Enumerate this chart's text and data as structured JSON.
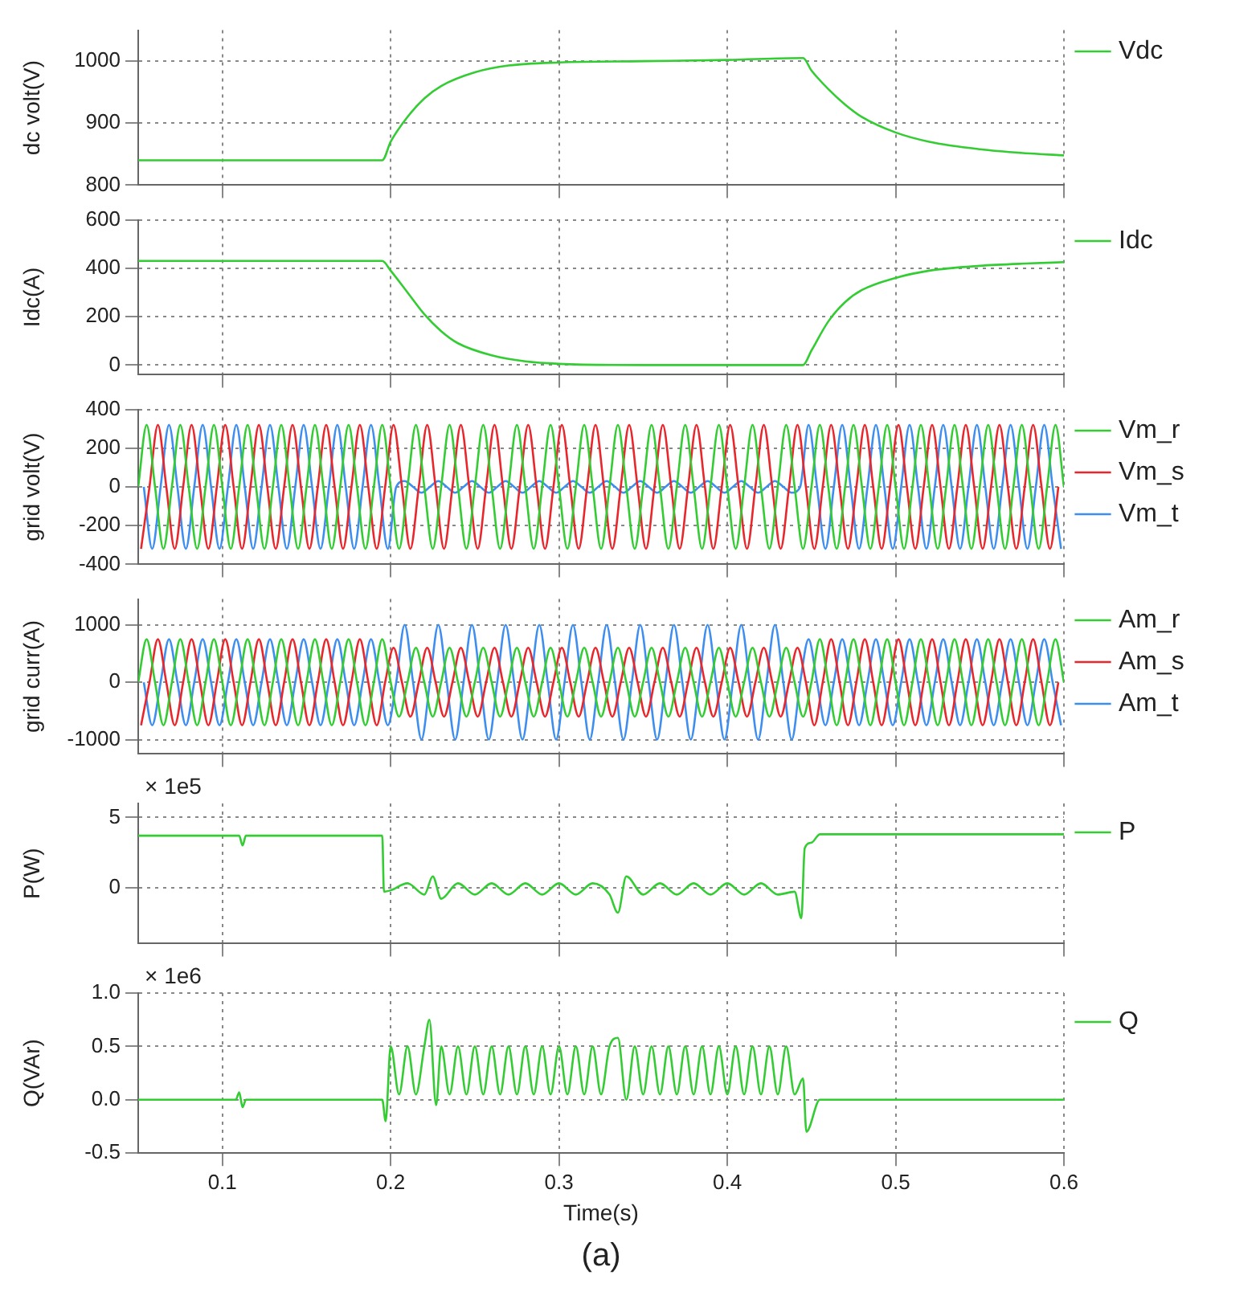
{
  "chart_data": [
    {
      "type": "line",
      "ylabel": "dc volt(V)",
      "xlim": [
        0.05,
        0.6
      ],
      "xticks": [
        0.1,
        0.2,
        0.3,
        0.4,
        0.5,
        0.6
      ],
      "ylim": [
        800,
        1050
      ],
      "yticks": [
        800,
        900,
        1000
      ],
      "grid": true,
      "legend": "right",
      "tick_labels": "y",
      "marker": "none",
      "line_style": "solid",
      "series": [
        {
          "name": "Vdc",
          "color": "#33cc33",
          "x": [
            0.05,
            0.195,
            0.2,
            0.21,
            0.22,
            0.23,
            0.25,
            0.27,
            0.3,
            0.35,
            0.4,
            0.445,
            0.45,
            0.46,
            0.47,
            0.48,
            0.5,
            0.52,
            0.55,
            0.58,
            0.6
          ],
          "values": [
            840,
            840,
            870,
            910,
            940,
            960,
            982,
            993,
            998,
            1000,
            1002,
            1005,
            985,
            955,
            930,
            910,
            885,
            870,
            858,
            851,
            848
          ]
        }
      ]
    },
    {
      "type": "line",
      "ylabel": "Idc(A)",
      "xlim": [
        0.05,
        0.6
      ],
      "xticks": [
        0.1,
        0.2,
        0.3,
        0.4,
        0.5,
        0.6
      ],
      "ylim": [
        -40,
        600
      ],
      "yticks": [
        0,
        200,
        400,
        600
      ],
      "grid": true,
      "legend": "right",
      "tick_labels": "y",
      "marker": "none",
      "line_style": "solid",
      "series": [
        {
          "name": "Idc",
          "color": "#33cc33",
          "x": [
            0.05,
            0.195,
            0.2,
            0.21,
            0.22,
            0.23,
            0.24,
            0.26,
            0.28,
            0.3,
            0.35,
            0.445,
            0.45,
            0.46,
            0.47,
            0.48,
            0.5,
            0.52,
            0.55,
            0.58,
            0.6
          ],
          "values": [
            430,
            430,
            390,
            300,
            210,
            140,
            90,
            40,
            15,
            5,
            0,
            0,
            60,
            180,
            260,
            310,
            360,
            390,
            410,
            420,
            425
          ]
        }
      ]
    },
    {
      "type": "line",
      "ylabel": "grid volt(V)",
      "xlim": [
        0.05,
        0.6
      ],
      "xticks": [
        0.1,
        0.2,
        0.3,
        0.4,
        0.5,
        0.6
      ],
      "ylim": [
        -400,
        400
      ],
      "yticks": [
        -400,
        -200,
        0,
        200,
        400
      ],
      "grid": true,
      "legend": "right",
      "tick_labels": "y",
      "marker": "none",
      "line_style": "solid",
      "series": [
        {
          "name": "Vm_r",
          "color": "#33cc33",
          "x": [
            0.05,
            0.055,
            0.06,
            0.065,
            0.07,
            0.075,
            0.08,
            0.085,
            0.09,
            0.095,
            0.1,
            0.105,
            0.11,
            0.115,
            0.12,
            0.125,
            0.13,
            0.135,
            0.14,
            0.145,
            0.15,
            0.155,
            0.16,
            0.165,
            0.17,
            0.175,
            0.18,
            0.185,
            0.19,
            0.195,
            0.2,
            0.205,
            0.21,
            0.215,
            0.22,
            0.225,
            0.23,
            0.235,
            0.24,
            0.245,
            0.25,
            0.255,
            0.26,
            0.265,
            0.27,
            0.275,
            0.28,
            0.285,
            0.29,
            0.295,
            0.3,
            0.305,
            0.31,
            0.315,
            0.32,
            0.325,
            0.33,
            0.335,
            0.34,
            0.345,
            0.35,
            0.355,
            0.36,
            0.365,
            0.37,
            0.375,
            0.38,
            0.385,
            0.39,
            0.395,
            0.4,
            0.405,
            0.41,
            0.415,
            0.42,
            0.425,
            0.43,
            0.435,
            0.44,
            0.445,
            0.45,
            0.455,
            0.46,
            0.465,
            0.47,
            0.475,
            0.48,
            0.485,
            0.49,
            0.495,
            0.5,
            0.505,
            0.51,
            0.515,
            0.52,
            0.525,
            0.53,
            0.535,
            0.54,
            0.545,
            0.55,
            0.555,
            0.56,
            0.565,
            0.57,
            0.575,
            0.58,
            0.585,
            0.59,
            0.595,
            0.6
          ],
          "values": [
            0,
            320,
            0,
            -320,
            0,
            320,
            0,
            -320,
            0,
            320,
            0,
            -320,
            0,
            320,
            0,
            -320,
            0,
            320,
            0,
            -320,
            0,
            320,
            0,
            -320,
            0,
            320,
            0,
            -320,
            0,
            320,
            0,
            -320,
            0,
            320,
            0,
            -320,
            0,
            320,
            0,
            -320,
            0,
            320,
            0,
            -320,
            0,
            320,
            0,
            -320,
            0,
            320,
            0,
            -320,
            0,
            320,
            0,
            -320,
            0,
            320,
            0,
            -320,
            0,
            320,
            0,
            -320,
            0,
            320,
            0,
            -320,
            0,
            320,
            0,
            -320,
            0,
            320,
            0,
            -320,
            0,
            320,
            0,
            -320,
            0,
            320,
            0,
            -320,
            0,
            320,
            0,
            -320,
            0,
            320,
            0,
            -320,
            0,
            320,
            0,
            -320,
            0,
            320,
            0,
            -320,
            0,
            320,
            0,
            -320,
            0,
            320,
            0,
            -320,
            0,
            320,
            0
          ]
        },
        {
          "name": "Vm_s",
          "color": "#e8262b",
          "x": [
            0.0517,
            0.0567,
            0.0617,
            0.0667,
            0.0717,
            0.0767,
            0.0817,
            0.0867,
            0.0917,
            0.0967,
            0.1017,
            0.1067,
            0.1117,
            0.1167,
            0.1217,
            0.1267,
            0.1317,
            0.1367,
            0.1417,
            0.1467,
            0.1517,
            0.1567,
            0.1617,
            0.1667,
            0.1717,
            0.1767,
            0.1817,
            0.1867,
            0.1917,
            0.1967,
            0.2017,
            0.2067,
            0.2117,
            0.2167,
            0.2217,
            0.2267,
            0.2317,
            0.2367,
            0.2417,
            0.2467,
            0.2517,
            0.2567,
            0.2617,
            0.2667,
            0.2717,
            0.2767,
            0.2817,
            0.2867,
            0.2917,
            0.2967,
            0.3017,
            0.3067,
            0.3117,
            0.3167,
            0.3217,
            0.3267,
            0.3317,
            0.3367,
            0.3417,
            0.3467,
            0.3517,
            0.3567,
            0.3617,
            0.3667,
            0.3717,
            0.3767,
            0.3817,
            0.3867,
            0.3917,
            0.3967,
            0.4017,
            0.4067,
            0.4117,
            0.4167,
            0.4217,
            0.4267,
            0.4317,
            0.4367,
            0.4417,
            0.4467,
            0.4517,
            0.4567,
            0.4617,
            0.4667,
            0.4717,
            0.4767,
            0.4817,
            0.4867,
            0.4917,
            0.4967,
            0.5017,
            0.5067,
            0.5117,
            0.5167,
            0.5217,
            0.5267,
            0.5317,
            0.5367,
            0.5417,
            0.5467,
            0.5517,
            0.5567,
            0.5617,
            0.5667,
            0.5717,
            0.5767,
            0.5817,
            0.5867,
            0.5917,
            0.5967
          ],
          "values": [
            -320,
            0,
            320,
            0,
            -320,
            0,
            320,
            0,
            -320,
            0,
            320,
            0,
            -320,
            0,
            320,
            0,
            -320,
            0,
            320,
            0,
            -320,
            0,
            320,
            0,
            -320,
            0,
            320,
            0,
            -320,
            0,
            320,
            0,
            -320,
            0,
            320,
            0,
            -320,
            0,
            320,
            0,
            -320,
            0,
            320,
            0,
            -320,
            0,
            320,
            0,
            -320,
            0,
            320,
            0,
            -320,
            0,
            320,
            0,
            -320,
            0,
            320,
            0,
            -320,
            0,
            320,
            0,
            -320,
            0,
            320,
            0,
            -320,
            0,
            320,
            0,
            -320,
            0,
            320,
            0,
            -320,
            0,
            320,
            0,
            -320,
            0,
            320,
            0,
            -320,
            0,
            320,
            0,
            -320,
            0,
            320,
            0,
            -320,
            0,
            320,
            0,
            -320,
            0,
            320,
            0,
            -320,
            0,
            320,
            0,
            -320,
            0,
            320,
            0,
            -320,
            0
          ]
        },
        {
          "name": "Vm_t",
          "color": "#3d8ef0",
          "x": [
            0.0533,
            0.0583,
            0.0633,
            0.0683,
            0.0733,
            0.0783,
            0.0833,
            0.0883,
            0.0933,
            0.0983,
            0.1033,
            0.1083,
            0.1133,
            0.1183,
            0.1233,
            0.1283,
            0.1333,
            0.1383,
            0.1433,
            0.1483,
            0.1533,
            0.1583,
            0.1633,
            0.1683,
            0.1733,
            0.1783,
            0.1833,
            0.1883,
            0.1933,
            0.1983,
            0.2033,
            0.2083,
            0.2133,
            0.2183,
            0.2233,
            0.2283,
            0.2333,
            0.2383,
            0.2433,
            0.2483,
            0.2533,
            0.2583,
            0.2633,
            0.2683,
            0.2733,
            0.2783,
            0.2833,
            0.2883,
            0.2933,
            0.2983,
            0.3033,
            0.3083,
            0.3133,
            0.3183,
            0.3233,
            0.3283,
            0.3333,
            0.3383,
            0.3433,
            0.3483,
            0.3533,
            0.3583,
            0.3633,
            0.3683,
            0.3733,
            0.3783,
            0.3833,
            0.3883,
            0.3933,
            0.3983,
            0.4033,
            0.4083,
            0.4133,
            0.4183,
            0.4233,
            0.4283,
            0.4333,
            0.4383,
            0.4433,
            0.4483,
            0.4533,
            0.4583,
            0.4633,
            0.4683,
            0.4733,
            0.4783,
            0.4833,
            0.4883,
            0.4933,
            0.4983,
            0.5033,
            0.5083,
            0.5133,
            0.5183,
            0.5233,
            0.5283,
            0.5333,
            0.5383,
            0.5433,
            0.5483,
            0.5533,
            0.5583,
            0.5633,
            0.5683,
            0.5733,
            0.5783,
            0.5833,
            0.5883,
            0.5933,
            0.5983
          ],
          "values": [
            0,
            -320,
            0,
            320,
            0,
            -320,
            0,
            320,
            0,
            -320,
            0,
            320,
            0,
            -320,
            0,
            320,
            0,
            -320,
            0,
            320,
            0,
            -320,
            0,
            320,
            0,
            -320,
            0,
            320,
            0,
            -320,
            0,
            30,
            0,
            -30,
            0,
            30,
            0,
            -30,
            0,
            30,
            0,
            -30,
            0,
            30,
            0,
            -30,
            0,
            30,
            0,
            -30,
            0,
            30,
            0,
            -30,
            0,
            30,
            0,
            -30,
            0,
            30,
            0,
            -30,
            0,
            30,
            0,
            -30,
            0,
            30,
            0,
            -30,
            0,
            30,
            0,
            -30,
            0,
            30,
            0,
            -30,
            0,
            320,
            0,
            -320,
            0,
            320,
            0,
            -320,
            0,
            320,
            0,
            -320,
            0,
            320,
            0,
            -320,
            0,
            320,
            0,
            -320,
            0,
            320,
            0,
            -320,
            0,
            320,
            0,
            -320,
            0,
            320,
            0,
            -320
          ]
        }
      ]
    },
    {
      "type": "line",
      "ylabel": "grid curr(A)",
      "xlim": [
        0.05,
        0.6
      ],
      "xticks": [
        0.1,
        0.2,
        0.3,
        0.4,
        0.5,
        0.6
      ],
      "ylim": [
        -1250,
        1450
      ],
      "yticks": [
        -1000,
        0,
        1000
      ],
      "grid": true,
      "legend": "right",
      "tick_labels": "y",
      "marker": "none",
      "line_style": "solid",
      "series": [
        {
          "name": "Am_r",
          "color": "#33cc33",
          "x": [
            0.05,
            0.055,
            0.06,
            0.065,
            0.07,
            0.075,
            0.08,
            0.085,
            0.09,
            0.095,
            0.1,
            0.105,
            0.11,
            0.115,
            0.12,
            0.125,
            0.13,
            0.135,
            0.14,
            0.145,
            0.15,
            0.155,
            0.16,
            0.165,
            0.17,
            0.175,
            0.18,
            0.185,
            0.19,
            0.195,
            0.2,
            0.205,
            0.21,
            0.215,
            0.22,
            0.225,
            0.23,
            0.235,
            0.24,
            0.245,
            0.25,
            0.255,
            0.26,
            0.265,
            0.27,
            0.275,
            0.28,
            0.285,
            0.29,
            0.295,
            0.3,
            0.305,
            0.31,
            0.315,
            0.32,
            0.325,
            0.33,
            0.335,
            0.34,
            0.345,
            0.35,
            0.355,
            0.36,
            0.365,
            0.37,
            0.375,
            0.38,
            0.385,
            0.39,
            0.395,
            0.4,
            0.405,
            0.41,
            0.415,
            0.42,
            0.425,
            0.43,
            0.435,
            0.44,
            0.445,
            0.45,
            0.455,
            0.46,
            0.465,
            0.47,
            0.475,
            0.48,
            0.485,
            0.49,
            0.495,
            0.5,
            0.505,
            0.51,
            0.515,
            0.52,
            0.525,
            0.53,
            0.535,
            0.54,
            0.545,
            0.55,
            0.555,
            0.56,
            0.565,
            0.57,
            0.575,
            0.58,
            0.585,
            0.59,
            0.595,
            0.6
          ],
          "values": [
            0,
            750,
            0,
            -750,
            0,
            750,
            0,
            -750,
            0,
            750,
            0,
            -750,
            0,
            750,
            0,
            -750,
            0,
            750,
            0,
            -750,
            0,
            750,
            0,
            -750,
            0,
            750,
            0,
            -750,
            0,
            750,
            0,
            -600,
            0,
            600,
            0,
            -600,
            0,
            600,
            0,
            -600,
            0,
            600,
            0,
            -600,
            0,
            600,
            0,
            -600,
            0,
            600,
            0,
            -600,
            0,
            600,
            0,
            -600,
            0,
            600,
            0,
            -600,
            0,
            600,
            0,
            -600,
            0,
            600,
            0,
            -600,
            0,
            600,
            0,
            -600,
            0,
            600,
            0,
            -600,
            0,
            600,
            0,
            -600,
            0,
            750,
            0,
            -750,
            0,
            750,
            0,
            -750,
            0,
            750,
            0,
            -750,
            0,
            750,
            0,
            -750,
            0,
            750,
            0,
            -750,
            0,
            750,
            0,
            -750,
            0,
            750,
            0,
            -750,
            0,
            750,
            0
          ]
        },
        {
          "name": "Am_s",
          "color": "#e8262b",
          "x": [
            0.0517,
            0.0567,
            0.0617,
            0.0667,
            0.0717,
            0.0767,
            0.0817,
            0.0867,
            0.0917,
            0.0967,
            0.1017,
            0.1067,
            0.1117,
            0.1167,
            0.1217,
            0.1267,
            0.1317,
            0.1367,
            0.1417,
            0.1467,
            0.1517,
            0.1567,
            0.1617,
            0.1667,
            0.1717,
            0.1767,
            0.1817,
            0.1867,
            0.1917,
            0.1967,
            0.2017,
            0.2067,
            0.2117,
            0.2167,
            0.2217,
            0.2267,
            0.2317,
            0.2367,
            0.2417,
            0.2467,
            0.2517,
            0.2567,
            0.2617,
            0.2667,
            0.2717,
            0.2767,
            0.2817,
            0.2867,
            0.2917,
            0.2967,
            0.3017,
            0.3067,
            0.3117,
            0.3167,
            0.3217,
            0.3267,
            0.3317,
            0.3367,
            0.3417,
            0.3467,
            0.3517,
            0.3567,
            0.3617,
            0.3667,
            0.3717,
            0.3767,
            0.3817,
            0.3867,
            0.3917,
            0.3967,
            0.4017,
            0.4067,
            0.4117,
            0.4167,
            0.4217,
            0.4267,
            0.4317,
            0.4367,
            0.4417,
            0.4467,
            0.4517,
            0.4567,
            0.4617,
            0.4667,
            0.4717,
            0.4767,
            0.4817,
            0.4867,
            0.4917,
            0.4967,
            0.5017,
            0.5067,
            0.5117,
            0.5167,
            0.5217,
            0.5267,
            0.5317,
            0.5367,
            0.5417,
            0.5467,
            0.5517,
            0.5567,
            0.5617,
            0.5667,
            0.5717,
            0.5767,
            0.5817,
            0.5867,
            0.5917,
            0.5967
          ],
          "values": [
            -750,
            0,
            750,
            0,
            -750,
            0,
            750,
            0,
            -750,
            0,
            750,
            0,
            -750,
            0,
            750,
            0,
            -750,
            0,
            750,
            0,
            -750,
            0,
            750,
            0,
            -750,
            0,
            750,
            0,
            -750,
            0,
            600,
            0,
            -600,
            0,
            600,
            0,
            -600,
            0,
            600,
            0,
            -600,
            0,
            600,
            0,
            -600,
            0,
            600,
            0,
            -600,
            0,
            600,
            0,
            -600,
            0,
            600,
            0,
            -600,
            0,
            600,
            0,
            -600,
            0,
            600,
            0,
            -600,
            0,
            600,
            0,
            -600,
            0,
            600,
            0,
            -600,
            0,
            600,
            0,
            -600,
            0,
            600,
            0,
            -750,
            0,
            750,
            0,
            -750,
            0,
            750,
            0,
            -750,
            0,
            750,
            0,
            -750,
            0,
            750,
            0,
            -750,
            0,
            750,
            0,
            -750,
            0,
            750,
            0,
            -750,
            0,
            750,
            0,
            -750,
            0
          ]
        },
        {
          "name": "Am_t",
          "color": "#3d8ef0",
          "x": [
            0.0533,
            0.0583,
            0.0633,
            0.0683,
            0.0733,
            0.0783,
            0.0833,
            0.0883,
            0.0933,
            0.0983,
            0.1033,
            0.1083,
            0.1133,
            0.1183,
            0.1233,
            0.1283,
            0.1333,
            0.1383,
            0.1433,
            0.1483,
            0.1533,
            0.1583,
            0.1633,
            0.1683,
            0.1733,
            0.1783,
            0.1833,
            0.1883,
            0.1933,
            0.1983,
            0.2033,
            0.2083,
            0.2133,
            0.2183,
            0.2233,
            0.2283,
            0.2333,
            0.2383,
            0.2433,
            0.2483,
            0.2533,
            0.2583,
            0.2633,
            0.2683,
            0.2733,
            0.2783,
            0.2833,
            0.2883,
            0.2933,
            0.2983,
            0.3033,
            0.3083,
            0.3133,
            0.3183,
            0.3233,
            0.3283,
            0.3333,
            0.3383,
            0.3433,
            0.3483,
            0.3533,
            0.3583,
            0.3633,
            0.3683,
            0.3733,
            0.3783,
            0.3833,
            0.3883,
            0.3933,
            0.3983,
            0.4033,
            0.4083,
            0.4133,
            0.4183,
            0.4233,
            0.4283,
            0.4333,
            0.4383,
            0.4433,
            0.4483,
            0.4533,
            0.4583,
            0.4633,
            0.4683,
            0.4733,
            0.4783,
            0.4833,
            0.4883,
            0.4933,
            0.4983,
            0.5033,
            0.5083,
            0.5133,
            0.5183,
            0.5233,
            0.5283,
            0.5333,
            0.5383,
            0.5433,
            0.5483,
            0.5533,
            0.5583,
            0.5633,
            0.5683,
            0.5733,
            0.5783,
            0.5833,
            0.5883,
            0.5933,
            0.5983
          ],
          "values": [
            0,
            -750,
            0,
            750,
            0,
            -750,
            0,
            750,
            0,
            -750,
            0,
            750,
            0,
            -750,
            0,
            750,
            0,
            -750,
            0,
            750,
            0,
            -750,
            0,
            750,
            0,
            -750,
            0,
            750,
            0,
            -750,
            0,
            1000,
            0,
            -1000,
            0,
            1000,
            0,
            -1000,
            0,
            1000,
            0,
            -1000,
            0,
            1000,
            0,
            -1000,
            0,
            1000,
            0,
            -1000,
            0,
            1000,
            0,
            -1000,
            0,
            1000,
            0,
            -1000,
            0,
            1000,
            0,
            -1000,
            0,
            1000,
            0,
            -1000,
            0,
            1000,
            0,
            -1000,
            0,
            1000,
            0,
            -1000,
            0,
            1000,
            0,
            -1000,
            0,
            750,
            0,
            -750,
            0,
            750,
            0,
            -750,
            0,
            750,
            0,
            -750,
            0,
            750,
            0,
            -750,
            0,
            750,
            0,
            -750,
            0,
            750,
            0,
            -750,
            0,
            750,
            0,
            -750,
            0,
            750,
            0,
            -750
          ]
        }
      ]
    },
    {
      "type": "line",
      "ylabel": "P(W)",
      "annotations": [
        "× 1e5"
      ],
      "xlim": [
        0.05,
        0.6
      ],
      "xticks": [
        0.1,
        0.2,
        0.3,
        0.4,
        0.5,
        0.6
      ],
      "ylim": [
        -4,
        6
      ],
      "yticks": [
        0,
        5
      ],
      "grid": true,
      "legend": "right",
      "tick_labels": "y",
      "marker": "none",
      "line_style": "solid",
      "series": [
        {
          "name": "P",
          "color": "#33cc33",
          "x": [
            0.05,
            0.11,
            0.112,
            0.114,
            0.195,
            0.196,
            0.2,
            0.21,
            0.22,
            0.225,
            0.23,
            0.24,
            0.25,
            0.26,
            0.27,
            0.28,
            0.29,
            0.3,
            0.31,
            0.32,
            0.33,
            0.335,
            0.34,
            0.35,
            0.36,
            0.37,
            0.38,
            0.39,
            0.4,
            0.41,
            0.42,
            0.43,
            0.44,
            0.444,
            0.446,
            0.45,
            0.455,
            0.5,
            0.6
          ],
          "values": [
            3.7,
            3.7,
            3.0,
            3.7,
            3.7,
            -0.3,
            -0.2,
            0.3,
            -0.5,
            0.8,
            -0.8,
            0.3,
            -0.5,
            0.3,
            -0.5,
            0.3,
            -0.5,
            0.3,
            -0.5,
            0.3,
            -0.5,
            -1.8,
            0.8,
            -0.5,
            0.3,
            -0.5,
            0.3,
            -0.5,
            0.3,
            -0.5,
            0.3,
            -0.5,
            -0.3,
            -2.2,
            2.8,
            3.2,
            3.8,
            3.8,
            3.8
          ]
        }
      ]
    },
    {
      "type": "line",
      "xlabel": "Time(s)",
      "ylabel": "Q(VAr)",
      "annotations": [
        "× 1e6",
        "(a)"
      ],
      "xlim": [
        0.05,
        0.6
      ],
      "xticks": [
        0.1,
        0.2,
        0.3,
        0.4,
        0.5,
        0.6
      ],
      "ylim": [
        -0.5,
        1.0
      ],
      "yticks": [
        {
          "value": -0.5,
          "label": "-0.5"
        },
        {
          "value": 0,
          "label": "0.0"
        },
        {
          "value": 0.5,
          "label": "0.5"
        },
        {
          "value": 1.0,
          "label": "1.0"
        }
      ],
      "grid": true,
      "legend": "right",
      "marker": "none",
      "line_style": "solid",
      "series": [
        {
          "name": "Q",
          "color": "#33cc33",
          "x": [
            0.05,
            0.108,
            0.11,
            0.112,
            0.114,
            0.195,
            0.197,
            0.2,
            0.205,
            0.21,
            0.215,
            0.22,
            0.223,
            0.227,
            0.23,
            0.235,
            0.24,
            0.245,
            0.25,
            0.255,
            0.26,
            0.265,
            0.27,
            0.275,
            0.28,
            0.285,
            0.29,
            0.295,
            0.3,
            0.305,
            0.31,
            0.315,
            0.32,
            0.325,
            0.33,
            0.335,
            0.34,
            0.345,
            0.35,
            0.355,
            0.36,
            0.365,
            0.37,
            0.375,
            0.38,
            0.385,
            0.39,
            0.395,
            0.4,
            0.405,
            0.41,
            0.415,
            0.42,
            0.425,
            0.43,
            0.435,
            0.44,
            0.445,
            0.447,
            0.455,
            0.6
          ],
          "values": [
            0,
            0,
            0.07,
            -0.07,
            0,
            0,
            -0.2,
            0.5,
            0.05,
            0.5,
            0.05,
            0.5,
            0.75,
            -0.05,
            0.5,
            0.05,
            0.5,
            0.05,
            0.5,
            0.05,
            0.5,
            0.05,
            0.5,
            0.05,
            0.5,
            0.05,
            0.5,
            0.05,
            0.5,
            0.05,
            0.5,
            0.05,
            0.5,
            0.05,
            0.5,
            0.58,
            0.0,
            0.5,
            0.05,
            0.5,
            0.05,
            0.5,
            0.05,
            0.5,
            0.05,
            0.5,
            0.05,
            0.5,
            0.05,
            0.5,
            0.05,
            0.5,
            0.05,
            0.5,
            0.05,
            0.5,
            0.05,
            0.2,
            -0.3,
            0,
            0
          ]
        }
      ]
    }
  ]
}
